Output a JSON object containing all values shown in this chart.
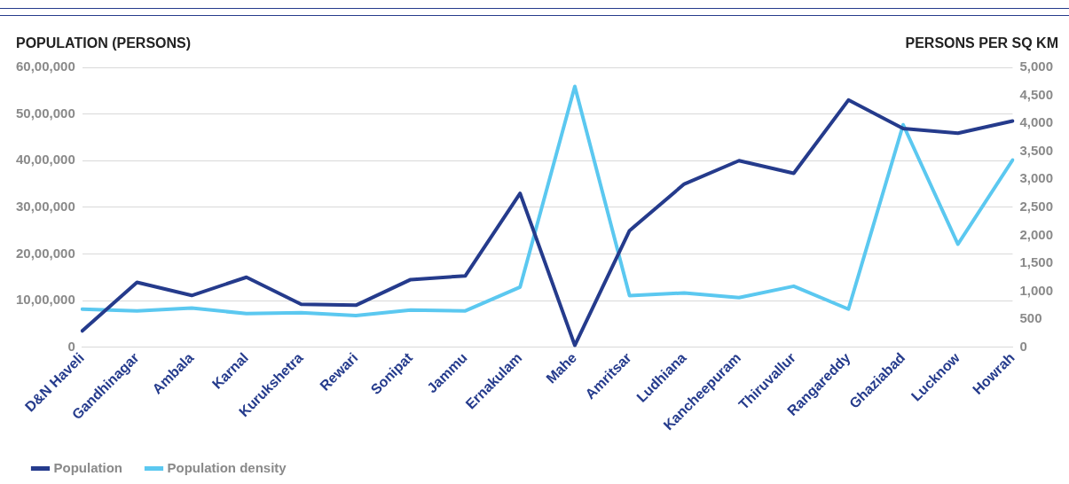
{
  "chart_data": {
    "type": "line",
    "ylabel": "POPULATION (PERSONS)",
    "y2label": "PERSONS PER SQ KM",
    "categories": [
      "D&N Haveli",
      "Gandhinagar",
      "Ambala",
      "Karnal",
      "Kurukshetra",
      "Rewari",
      "Sonipat",
      "Jammu",
      "Ernakulam",
      "Mahe",
      "Amritsar",
      "Ludhiana",
      "Kancheepuram",
      "Thiruvallur",
      "Rangareddy",
      "Ghaziabad",
      "Lucknow",
      "Howrah"
    ],
    "series": [
      {
        "name": "Population",
        "color": "#253b8c",
        "values": [
          350000,
          1390000,
          1110000,
          1500000,
          920000,
          900000,
          1450000,
          1530000,
          3300000,
          40000,
          2500000,
          3500000,
          4000000,
          3730000,
          5300000,
          4690000,
          4590000,
          4850000
        ]
      },
      {
        "name": "Population density",
        "color": "#5bc8f0",
        "axis": "y2",
        "values": [
          680,
          650,
          700,
          600,
          615,
          565,
          665,
          650,
          1075,
          4660,
          920,
          970,
          885,
          1090,
          680,
          3975,
          1840,
          3345
        ]
      }
    ],
    "ylim": [
      0,
      6000000
    ],
    "yticks": [
      0,
      {
        "value": 1000000,
        "label": "10,00,000"
      },
      {
        "value": 2000000,
        "label": "20,00,000"
      },
      {
        "value": 3000000,
        "label": "30,00,000"
      },
      {
        "value": 4000000,
        "label": "40,00,000"
      },
      {
        "value": 5000000,
        "label": "50,00,000"
      },
      {
        "value": 6000000,
        "label": "60,00,000"
      }
    ],
    "y2lim": [
      0,
      5000
    ],
    "y2ticks": [
      0,
      500,
      {
        "value": 1000,
        "label": "1,000"
      },
      {
        "value": 1500,
        "label": "1,500"
      },
      {
        "value": 2000,
        "label": "2,000"
      },
      {
        "value": 2500,
        "label": "2,500"
      },
      {
        "value": 3000,
        "label": "3,000"
      },
      {
        "value": 3500,
        "label": "3,500"
      },
      {
        "value": 4000,
        "label": "4,000"
      },
      {
        "value": 4500,
        "label": "4,500"
      },
      {
        "value": 5000,
        "label": "5,000"
      }
    ],
    "grid": "y",
    "legend": "bottom left",
    "marker": "none",
    "line_style": "solid"
  }
}
